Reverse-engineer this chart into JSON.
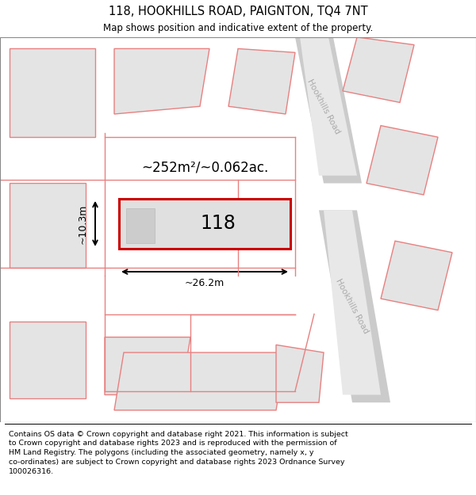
{
  "title": "118, HOOKHILLS ROAD, PAIGNTON, TQ4 7NT",
  "subtitle": "Map shows position and indicative extent of the property.",
  "footer": "Contains OS data © Crown copyright and database right 2021. This information is subject\nto Crown copyright and database rights 2023 and is reproduced with the permission of\nHM Land Registry. The polygons (including the associated geometry, namely x, y\nco-ordinates) are subject to Crown copyright and database rights 2023 Ordnance Survey\n100026316.",
  "highlight_color": "#cc0000",
  "line_color": "#e88080",
  "road_label": "Hookhills Road",
  "property_label": "118",
  "area_label": "~252m²/~0.062ac.",
  "width_label": "~26.2m",
  "height_label": "~10.3m",
  "map_bg": "#f0f0f0",
  "parcel_fill": "#e4e4e4",
  "road_fill": "#d8d8d8"
}
